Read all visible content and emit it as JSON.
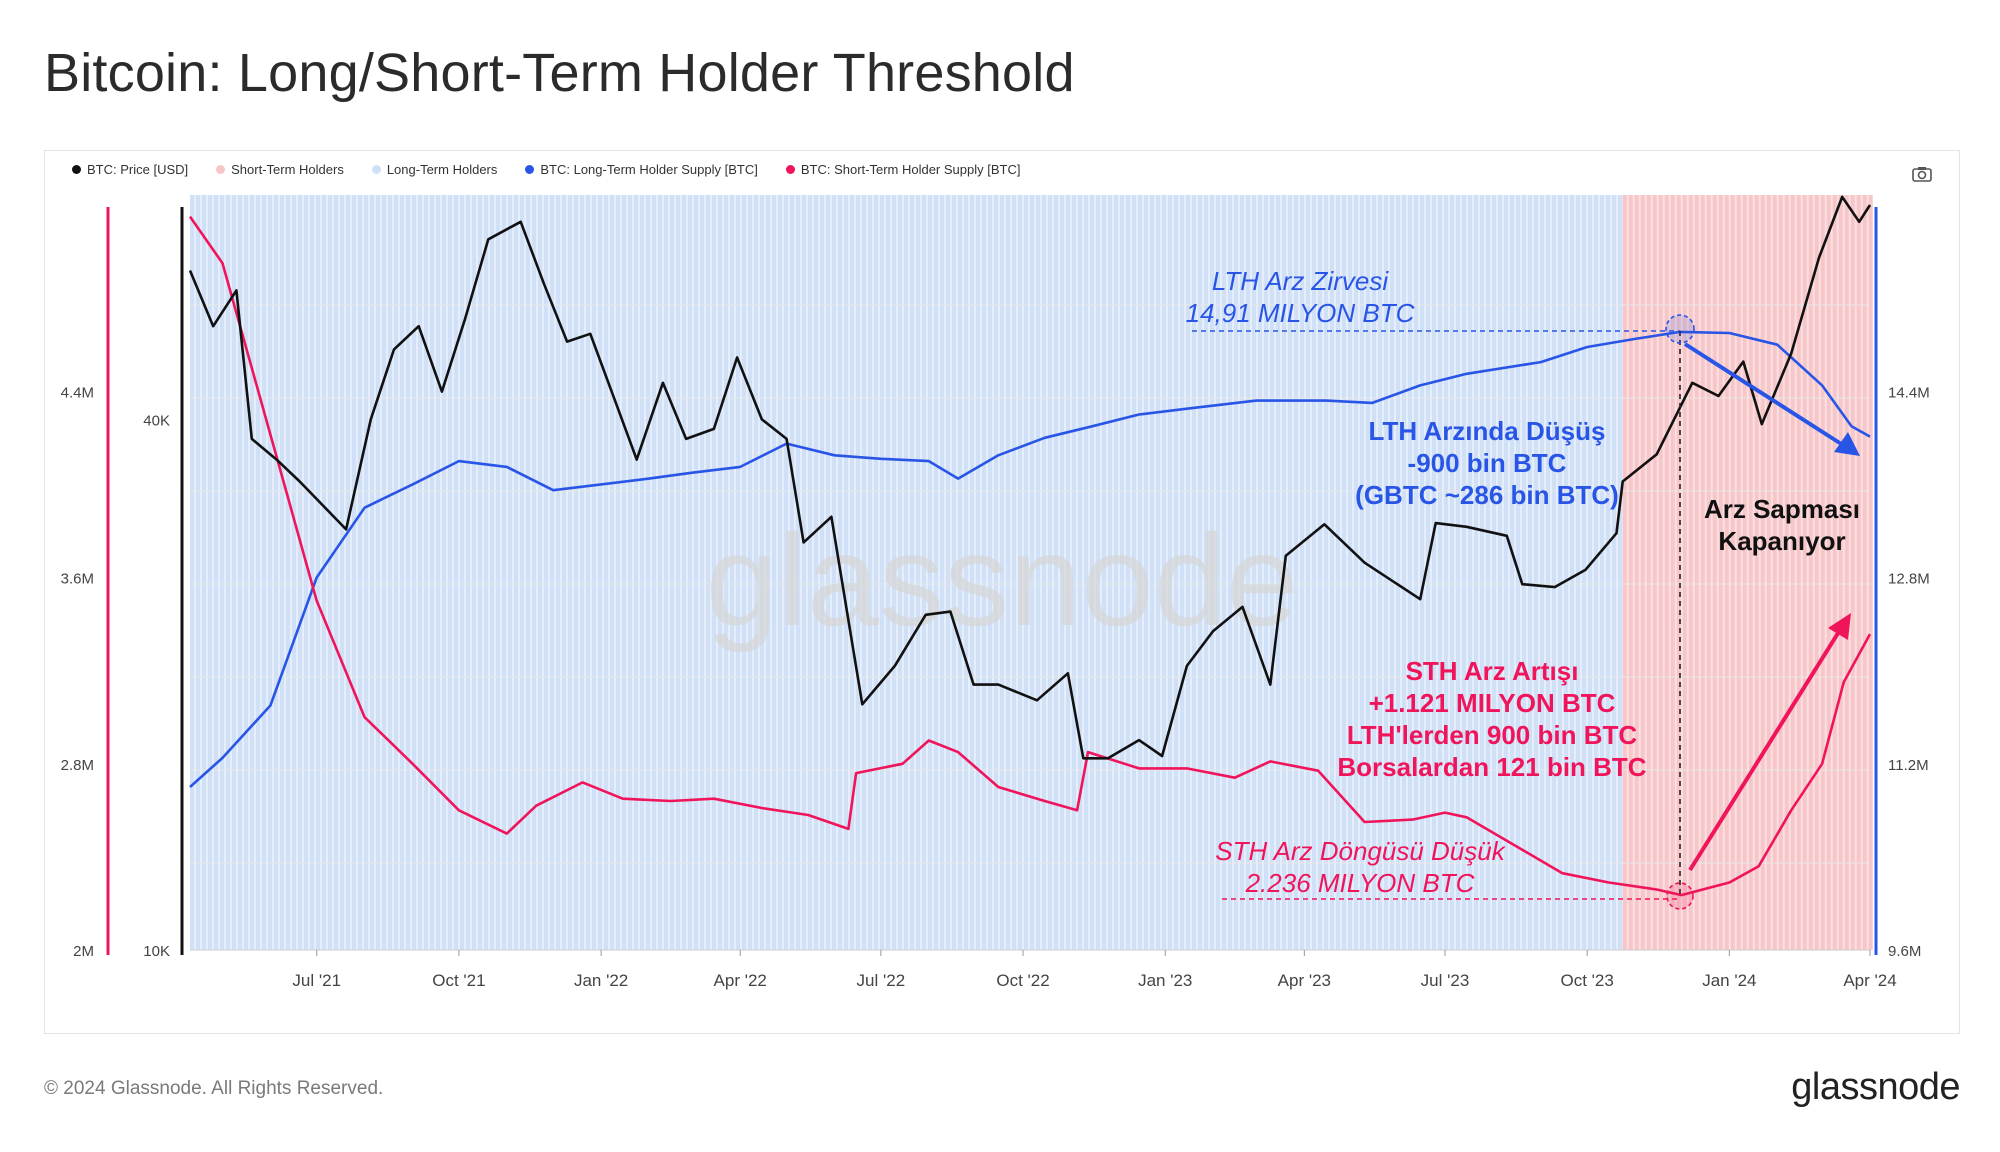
{
  "title": "Bitcoin: Long/Short-Term Holder Threshold",
  "legend": [
    {
      "label": "BTC: Price [USD]",
      "color": "#111111"
    },
    {
      "label": "Short-Term Holders",
      "color": "#f6c6c9"
    },
    {
      "label": "Long-Term Holders",
      "color": "#cfe0f7"
    },
    {
      "label": "BTC: Long-Term Holder Supply [BTC]",
      "color": "#2955e6"
    },
    {
      "label": "BTC: Short-Term Holder Supply [BTC]",
      "color": "#f0145a"
    }
  ],
  "watermark": "glassnode",
  "footer": {
    "copyright": "© 2024 Glassnode. All Rights Reserved.",
    "logo": "glassnode"
  },
  "annotations": {
    "lth_peak": [
      "LTH Arz Zirvesi",
      "14,91 MILYON BTC"
    ],
    "lth_drop": [
      "LTH Arzında Düşüş",
      "-900 bin BTC",
      "(GBTC ~286 bin BTC)"
    ],
    "divergence": [
      "Arz Sapması",
      "Kapanıyor"
    ],
    "sth_rise": [
      "STH Arz Artışı",
      "+1.121 MILYON BTC",
      "LTH'lerden 900 bin BTC",
      "Borsalardan 121 bin BTC"
    ],
    "sth_low": [
      "STH Arz Döngüsü Düşük",
      "2.236 MILYON BTC"
    ]
  },
  "chart_data": {
    "type": "line",
    "x_ticks": [
      "Jul '21",
      "Oct '21",
      "Jan '22",
      "Apr '22",
      "Jul '22",
      "Oct '22",
      "Jan '23",
      "Apr '23",
      "Jul '23",
      "Oct '23",
      "Jan '24",
      "Apr '24"
    ],
    "y_left_ticks": [
      "2M",
      "2.8M",
      "3.6M",
      "4.4M"
    ],
    "y_left_range": [
      2000000,
      5200000
    ],
    "y_price_ticks": [
      "10K",
      "40K"
    ],
    "y_price_scale": "log",
    "y_price_range": [
      10000,
      70000
    ],
    "y_right_ticks": [
      "9.6M",
      "11.2M",
      "12.8M",
      "14.4M"
    ],
    "y_right_range": [
      9600000,
      16000000
    ],
    "x_range": [
      "2021-04-10",
      "2024-04-01"
    ],
    "price_usd": [
      [
        "2021-04-10",
        59000
      ],
      [
        "2021-04-25",
        51000
      ],
      [
        "2021-05-10",
        56000
      ],
      [
        "2021-05-20",
        38000
      ],
      [
        "2021-06-05",
        36000
      ],
      [
        "2021-06-20",
        34000
      ],
      [
        "2021-07-20",
        30000
      ],
      [
        "2021-08-05",
        40000
      ],
      [
        "2021-08-20",
        48000
      ],
      [
        "2021-09-05",
        51000
      ],
      [
        "2021-09-20",
        43000
      ],
      [
        "2021-10-05",
        52000
      ],
      [
        "2021-10-20",
        64000
      ],
      [
        "2021-11-10",
        67000
      ],
      [
        "2021-11-25",
        57000
      ],
      [
        "2021-12-10",
        49000
      ],
      [
        "2021-12-25",
        50000
      ],
      [
        "2022-01-10",
        42000
      ],
      [
        "2022-01-24",
        36000
      ],
      [
        "2022-02-10",
        44000
      ],
      [
        "2022-02-25",
        38000
      ],
      [
        "2022-03-15",
        39000
      ],
      [
        "2022-03-30",
        47000
      ],
      [
        "2022-04-15",
        40000
      ],
      [
        "2022-05-01",
        38000
      ],
      [
        "2022-05-12",
        29000
      ],
      [
        "2022-05-30",
        31000
      ],
      [
        "2022-06-13",
        22000
      ],
      [
        "2022-06-19",
        19000
      ],
      [
        "2022-07-10",
        21000
      ],
      [
        "2022-07-30",
        24000
      ],
      [
        "2022-08-15",
        24200
      ],
      [
        "2022-08-30",
        20000
      ],
      [
        "2022-09-15",
        20000
      ],
      [
        "2022-10-10",
        19200
      ],
      [
        "2022-10-30",
        20600
      ],
      [
        "2022-11-09",
        16500
      ],
      [
        "2022-11-25",
        16500
      ],
      [
        "2022-12-15",
        17300
      ],
      [
        "2022-12-30",
        16600
      ],
      [
        "2023-01-15",
        21000
      ],
      [
        "2023-02-01",
        23000
      ],
      [
        "2023-02-20",
        24500
      ],
      [
        "2023-03-10",
        20000
      ],
      [
        "2023-03-20",
        28000
      ],
      [
        "2023-04-14",
        30400
      ],
      [
        "2023-05-10",
        27500
      ],
      [
        "2023-06-15",
        25000
      ],
      [
        "2023-06-25",
        30500
      ],
      [
        "2023-07-15",
        30200
      ],
      [
        "2023-08-10",
        29500
      ],
      [
        "2023-08-20",
        26000
      ],
      [
        "2023-09-10",
        25800
      ],
      [
        "2023-09-30",
        27000
      ],
      [
        "2023-10-20",
        29700
      ],
      [
        "2023-10-24",
        34000
      ],
      [
        "2023-11-15",
        36500
      ],
      [
        "2023-12-08",
        44000
      ],
      [
        "2023-12-25",
        42500
      ],
      [
        "2024-01-10",
        46500
      ],
      [
        "2024-01-22",
        39500
      ],
      [
        "2024-02-10",
        47500
      ],
      [
        "2024-02-28",
        61000
      ],
      [
        "2024-03-14",
        71500
      ],
      [
        "2024-03-25",
        67000
      ],
      [
        "2024-04-01",
        70000
      ]
    ],
    "lth_supply_btc": [
      [
        "2021-04-10",
        11000000
      ],
      [
        "2021-05-01",
        11250000
      ],
      [
        "2021-06-01",
        11700000
      ],
      [
        "2021-07-01",
        12800000
      ],
      [
        "2021-08-01",
        13400000
      ],
      [
        "2021-09-01",
        13600000
      ],
      [
        "2021-10-01",
        13800000
      ],
      [
        "2021-11-01",
        13750000
      ],
      [
        "2021-12-01",
        13550000
      ],
      [
        "2022-01-01",
        13600000
      ],
      [
        "2022-02-01",
        13650000
      ],
      [
        "2022-03-01",
        13700000
      ],
      [
        "2022-04-01",
        13750000
      ],
      [
        "2022-05-01",
        13950000
      ],
      [
        "2022-06-01",
        13850000
      ],
      [
        "2022-07-01",
        13820000
      ],
      [
        "2022-08-01",
        13800000
      ],
      [
        "2022-08-20",
        13650000
      ],
      [
        "2022-09-15",
        13850000
      ],
      [
        "2022-10-15",
        14000000
      ],
      [
        "2022-11-15",
        14100000
      ],
      [
        "2022-12-15",
        14200000
      ],
      [
        "2023-01-15",
        14250000
      ],
      [
        "2023-03-01",
        14320000
      ],
      [
        "2023-04-15",
        14320000
      ],
      [
        "2023-05-15",
        14300000
      ],
      [
        "2023-06-15",
        14450000
      ],
      [
        "2023-07-15",
        14550000
      ],
      [
        "2023-09-01",
        14650000
      ],
      [
        "2023-10-01",
        14780000
      ],
      [
        "2023-11-01",
        14850000
      ],
      [
        "2023-11-30",
        14910000
      ],
      [
        "2024-01-01",
        14900000
      ],
      [
        "2024-02-01",
        14800000
      ],
      [
        "2024-03-01",
        14450000
      ],
      [
        "2024-03-20",
        14100000
      ],
      [
        "2024-04-01",
        14010000
      ]
    ],
    "sth_supply_btc": [
      [
        "2021-04-10",
        5150000
      ],
      [
        "2021-05-01",
        4950000
      ],
      [
        "2021-05-20",
        4500000
      ],
      [
        "2021-06-10",
        4000000
      ],
      [
        "2021-07-01",
        3500000
      ],
      [
        "2021-08-01",
        3000000
      ],
      [
        "2021-09-01",
        2800000
      ],
      [
        "2021-10-01",
        2600000
      ],
      [
        "2021-11-01",
        2500000
      ],
      [
        "2021-11-20",
        2620000
      ],
      [
        "2021-12-20",
        2720000
      ],
      [
        "2022-01-15",
        2650000
      ],
      [
        "2022-02-15",
        2640000
      ],
      [
        "2022-03-15",
        2650000
      ],
      [
        "2022-04-15",
        2610000
      ],
      [
        "2022-05-15",
        2580000
      ],
      [
        "2022-06-10",
        2520000
      ],
      [
        "2022-06-15",
        2760000
      ],
      [
        "2022-07-15",
        2800000
      ],
      [
        "2022-08-01",
        2900000
      ],
      [
        "2022-08-20",
        2850000
      ],
      [
        "2022-09-15",
        2700000
      ],
      [
        "2022-10-15",
        2640000
      ],
      [
        "2022-11-05",
        2600000
      ],
      [
        "2022-11-12",
        2850000
      ],
      [
        "2022-12-15",
        2780000
      ],
      [
        "2023-01-15",
        2780000
      ],
      [
        "2023-02-15",
        2740000
      ],
      [
        "2023-03-10",
        2810000
      ],
      [
        "2023-04-10",
        2770000
      ],
      [
        "2023-05-10",
        2550000
      ],
      [
        "2023-06-10",
        2560000
      ],
      [
        "2023-07-01",
        2590000
      ],
      [
        "2023-07-15",
        2570000
      ],
      [
        "2023-08-15",
        2450000
      ],
      [
        "2023-09-15",
        2330000
      ],
      [
        "2023-10-15",
        2290000
      ],
      [
        "2023-11-15",
        2260000
      ],
      [
        "2023-12-01",
        2236000
      ],
      [
        "2024-01-01",
        2290000
      ],
      [
        "2024-01-20",
        2360000
      ],
      [
        "2024-02-10",
        2600000
      ],
      [
        "2024-03-01",
        2800000
      ],
      [
        "2024-03-15",
        3150000
      ],
      [
        "2024-04-01",
        3357000
      ]
    ],
    "regions": [
      {
        "name": "Long-Term Holders",
        "from": "2021-04-10",
        "to": "2023-10-24"
      },
      {
        "name": "Short-Term Holders",
        "from": "2023-10-24",
        "to": "2024-04-01"
      }
    ]
  }
}
